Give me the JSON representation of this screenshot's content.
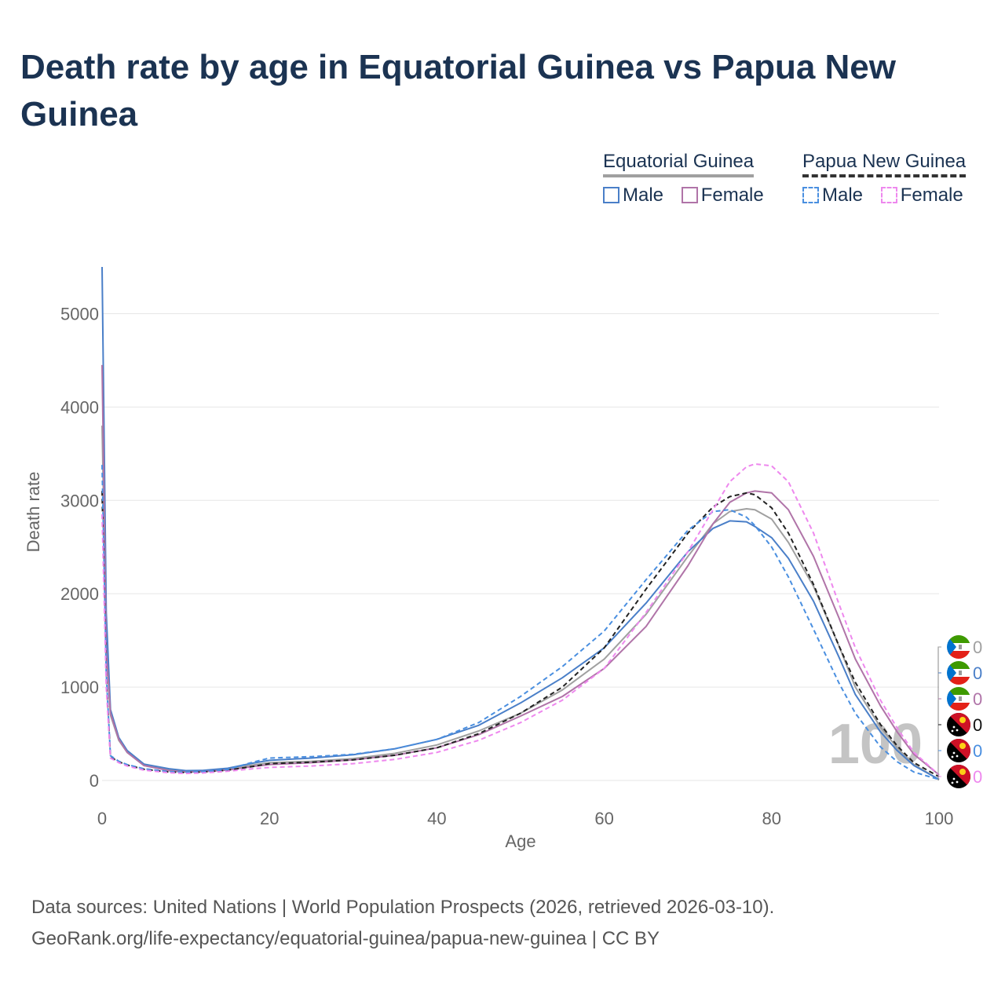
{
  "title": "Death rate by age in Equatorial Guinea vs Papua New Guinea",
  "legend": {
    "groups": [
      {
        "country": "Equatorial Guinea",
        "style": "solid",
        "color": "#a0a0a0",
        "items": [
          {
            "label": "Male",
            "color": "#4a7fc8"
          },
          {
            "label": "Female",
            "color": "#b074a8"
          }
        ]
      },
      {
        "country": "Papua New Guinea",
        "style": "dashed",
        "color": "#222222",
        "items": [
          {
            "label": "Male",
            "color": "#4a8fe0"
          },
          {
            "label": "Female",
            "color": "#ee88ee"
          }
        ]
      }
    ]
  },
  "chart_data": {
    "type": "line",
    "title": "Death rate by age in Equatorial Guinea vs Papua New Guinea",
    "xlabel": "Age",
    "ylabel": "Death rate",
    "xlim": [
      0,
      100
    ],
    "ylim": [
      0,
      5000
    ],
    "xticks": [
      0,
      20,
      40,
      60,
      80,
      100
    ],
    "yticks": [
      0,
      1000,
      2000,
      3000,
      4000,
      5000
    ],
    "grid": true,
    "watermark": "100",
    "series": [
      {
        "name": "Equatorial Guinea",
        "style": "solid",
        "color": "#a0a0a0",
        "x": [
          0,
          0.5,
          1,
          2,
          3,
          5,
          8,
          10,
          12,
          15,
          18,
          20,
          25,
          30,
          35,
          40,
          45,
          50,
          55,
          60,
          65,
          70,
          73,
          75,
          77,
          78,
          80,
          82,
          85,
          88,
          90,
          93,
          95,
          97,
          100
        ],
        "y": [
          3800,
          1500,
          700,
          430,
          300,
          160,
          110,
          95,
          98,
          120,
          165,
          190,
          205,
          235,
          290,
          380,
          530,
          720,
          970,
          1300,
          1780,
          2400,
          2750,
          2880,
          2910,
          2900,
          2800,
          2550,
          2080,
          1450,
          1000,
          570,
          350,
          170,
          10
        ]
      },
      {
        "name": "Equatorial Guinea Male",
        "style": "solid",
        "color": "#4a7fc8",
        "x": [
          0,
          0.5,
          1,
          2,
          3,
          5,
          8,
          10,
          12,
          15,
          18,
          20,
          25,
          30,
          35,
          40,
          45,
          50,
          55,
          60,
          65,
          70,
          73,
          75,
          77,
          78,
          80,
          82,
          85,
          88,
          90,
          93,
          95,
          97,
          100
        ],
        "y": [
          5500,
          1800,
          760,
          460,
          320,
          175,
          125,
          105,
          108,
          130,
          185,
          215,
          240,
          275,
          340,
          440,
          590,
          830,
          1100,
          1420,
          1900,
          2450,
          2700,
          2780,
          2770,
          2720,
          2600,
          2380,
          1920,
          1330,
          920,
          520,
          320,
          160,
          10
        ]
      },
      {
        "name": "Equatorial Guinea Female",
        "style": "solid",
        "color": "#b074a8",
        "x": [
          0,
          0.5,
          1,
          2,
          3,
          5,
          8,
          10,
          12,
          15,
          18,
          20,
          25,
          30,
          35,
          40,
          45,
          50,
          55,
          60,
          65,
          70,
          73,
          75,
          77,
          78,
          80,
          82,
          85,
          88,
          90,
          93,
          95,
          97,
          100
        ],
        "y": [
          4450,
          1400,
          720,
          440,
          300,
          160,
          105,
          90,
          93,
          112,
          150,
          170,
          190,
          220,
          270,
          350,
          490,
          690,
          900,
          1200,
          1650,
          2300,
          2750,
          2980,
          3080,
          3100,
          3080,
          2900,
          2400,
          1750,
          1300,
          800,
          520,
          280,
          60
        ]
      },
      {
        "name": "Papua New Guinea",
        "style": "dashed",
        "color": "#222222",
        "x": [
          0,
          0.5,
          1,
          2,
          3,
          5,
          8,
          10,
          12,
          15,
          18,
          20,
          25,
          30,
          35,
          40,
          45,
          50,
          55,
          60,
          65,
          70,
          73,
          75,
          77,
          78,
          80,
          82,
          85,
          88,
          90,
          93,
          95,
          97,
          100
        ],
        "y": [
          3100,
          1100,
          250,
          200,
          165,
          120,
          90,
          85,
          90,
          110,
          150,
          180,
          195,
          220,
          270,
          350,
          500,
          720,
          1000,
          1420,
          2050,
          2650,
          2930,
          3040,
          3080,
          3060,
          2920,
          2650,
          2100,
          1450,
          1050,
          600,
          370,
          190,
          40
        ]
      },
      {
        "name": "Papua New Guinea Male",
        "style": "dashed",
        "color": "#4a8fe0",
        "x": [
          0,
          0.5,
          1,
          2,
          3,
          5,
          8,
          10,
          12,
          15,
          18,
          20,
          25,
          30,
          35,
          40,
          45,
          50,
          55,
          60,
          65,
          70,
          73,
          75,
          77,
          78,
          80,
          82,
          85,
          88,
          90,
          93,
          95,
          97,
          100
        ],
        "y": [
          3380,
          1150,
          265,
          205,
          170,
          125,
          95,
          88,
          93,
          118,
          195,
          240,
          255,
          280,
          340,
          440,
          620,
          900,
          1220,
          1600,
          2150,
          2680,
          2880,
          2900,
          2820,
          2730,
          2500,
          2180,
          1620,
          1050,
          720,
          360,
          200,
          90,
          10
        ]
      },
      {
        "name": "Papua New Guinea Female",
        "style": "dashed",
        "color": "#ee88ee",
        "x": [
          0,
          0.5,
          1,
          2,
          3,
          5,
          8,
          10,
          12,
          15,
          18,
          20,
          25,
          30,
          35,
          40,
          45,
          50,
          55,
          60,
          65,
          70,
          73,
          75,
          77,
          78,
          80,
          82,
          85,
          88,
          90,
          93,
          95,
          97,
          100
        ],
        "y": [
          2850,
          1000,
          240,
          190,
          155,
          110,
          82,
          75,
          80,
          98,
          125,
          140,
          155,
          180,
          225,
          300,
          430,
          620,
          860,
          1200,
          1800,
          2450,
          2900,
          3200,
          3360,
          3390,
          3370,
          3200,
          2650,
          1900,
          1420,
          860,
          560,
          300,
          60
        ]
      }
    ],
    "end_labels": [
      {
        "flag": "equatorial-guinea",
        "value": "0",
        "color": "#a0a0a0"
      },
      {
        "flag": "equatorial-guinea",
        "value": "0",
        "color": "#4a7fc8"
      },
      {
        "flag": "equatorial-guinea",
        "value": "0",
        "color": "#b074a8"
      },
      {
        "flag": "papua-new-guinea",
        "value": "0",
        "color": "#111111"
      },
      {
        "flag": "papua-new-guinea",
        "value": "0",
        "color": "#4a8fe0"
      },
      {
        "flag": "papua-new-guinea",
        "value": "0",
        "color": "#ee88ee"
      }
    ]
  },
  "footer": {
    "source": "Data sources: United Nations | World Population Prospects (2026, retrieved 2026-03-10).",
    "url": "GeoRank.org/life-expectancy/equatorial-guinea/papua-new-guinea | CC BY"
  }
}
